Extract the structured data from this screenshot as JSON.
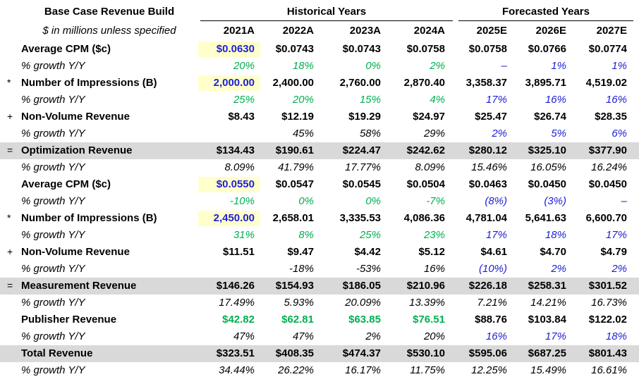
{
  "header": {
    "title": "Base Case Revenue Build",
    "subtitle": "$ in millions unless specified",
    "historical_label": "Historical Years",
    "forecast_label": "Forecasted Years",
    "years": [
      "2021A",
      "2022A",
      "2023A",
      "2024A",
      "2025E",
      "2026E",
      "2027E"
    ]
  },
  "colors": {
    "green": "#00b050",
    "blue": "#1f1fd6",
    "highlight": "#ffffcc",
    "band": "#d9d9d9"
  },
  "rows": [
    {
      "op": "",
      "label": "Average CPM ($c)",
      "style": "bold",
      "band": false,
      "values": [
        "$0.0630",
        "$0.0743",
        "$0.0743",
        "$0.0758",
        "$0.0758",
        "$0.0766",
        "$0.0774"
      ],
      "colors": [
        "blue",
        "black",
        "black",
        "black",
        "black",
        "black",
        "black"
      ],
      "highlight_first": true
    },
    {
      "op": "",
      "label": "% growth Y/Y",
      "style": "italic",
      "band": false,
      "values": [
        "20%",
        "18%",
        "0%",
        "2%",
        "–",
        "1%",
        "1%"
      ],
      "colors": [
        "green",
        "green",
        "green",
        "green",
        "blue",
        "blue",
        "blue"
      ],
      "highlight_first": false
    },
    {
      "op": "*",
      "label": "Number of Impressions (B)",
      "style": "bold",
      "band": false,
      "values": [
        "2,000.00",
        "2,400.00",
        "2,760.00",
        "2,870.40",
        "3,358.37",
        "3,895.71",
        "4,519.02"
      ],
      "colors": [
        "blue",
        "black",
        "black",
        "black",
        "black",
        "black",
        "black"
      ],
      "highlight_first": true
    },
    {
      "op": "",
      "label": "% growth Y/Y",
      "style": "italic",
      "band": false,
      "values": [
        "25%",
        "20%",
        "15%",
        "4%",
        "17%",
        "16%",
        "16%"
      ],
      "colors": [
        "green",
        "green",
        "green",
        "green",
        "blue",
        "blue",
        "blue"
      ],
      "highlight_first": false
    },
    {
      "op": "+",
      "label": "Non-Volume Revenue",
      "style": "bold",
      "band": false,
      "values": [
        "$8.43",
        "$12.19",
        "$19.29",
        "$24.97",
        "$25.47",
        "$26.74",
        "$28.35"
      ],
      "colors": [
        "black",
        "black",
        "black",
        "black",
        "black",
        "black",
        "black"
      ],
      "highlight_first": false
    },
    {
      "op": "",
      "label": "% growth Y/Y",
      "style": "italic",
      "band": false,
      "values": [
        "",
        "45%",
        "58%",
        "29%",
        "2%",
        "5%",
        "6%"
      ],
      "colors": [
        "black",
        "black",
        "black",
        "black",
        "blue",
        "blue",
        "blue"
      ],
      "highlight_first": false
    },
    {
      "op": "=",
      "label": "Optimization Revenue",
      "style": "bold",
      "band": true,
      "values": [
        "$134.43",
        "$190.61",
        "$224.47",
        "$242.62",
        "$280.12",
        "$325.10",
        "$377.90"
      ],
      "colors": [
        "black",
        "black",
        "black",
        "black",
        "black",
        "black",
        "black"
      ],
      "highlight_first": false
    },
    {
      "op": "",
      "label": "% growth Y/Y",
      "style": "italic",
      "band": false,
      "values": [
        "8.09%",
        "41.79%",
        "17.77%",
        "8.09%",
        "15.46%",
        "16.05%",
        "16.24%"
      ],
      "colors": [
        "black",
        "black",
        "black",
        "black",
        "black",
        "black",
        "black"
      ],
      "highlight_first": false
    },
    {
      "op": "",
      "label": "Average CPM ($c)",
      "style": "bold",
      "band": false,
      "values": [
        "$0.0550",
        "$0.0547",
        "$0.0545",
        "$0.0504",
        "$0.0463",
        "$0.0450",
        "$0.0450"
      ],
      "colors": [
        "blue",
        "black",
        "black",
        "black",
        "black",
        "black",
        "black"
      ],
      "highlight_first": true
    },
    {
      "op": "",
      "label": "% growth Y/Y",
      "style": "italic",
      "band": false,
      "values": [
        "-10%",
        "0%",
        "0%",
        "-7%",
        "(8%)",
        "(3%)",
        "–"
      ],
      "colors": [
        "green",
        "green",
        "green",
        "green",
        "blue",
        "blue",
        "blue"
      ],
      "highlight_first": false
    },
    {
      "op": "*",
      "label": "Number of Impressions (B)",
      "style": "bold",
      "band": false,
      "values": [
        "2,450.00",
        "2,658.01",
        "3,335.53",
        "4,086.36",
        "4,781.04",
        "5,641.63",
        "6,600.70"
      ],
      "colors": [
        "blue",
        "black",
        "black",
        "black",
        "black",
        "black",
        "black"
      ],
      "highlight_first": true
    },
    {
      "op": "",
      "label": "% growth Y/Y",
      "style": "italic",
      "band": false,
      "values": [
        "31%",
        "8%",
        "25%",
        "23%",
        "17%",
        "18%",
        "17%"
      ],
      "colors": [
        "green",
        "green",
        "green",
        "green",
        "blue",
        "blue",
        "blue"
      ],
      "highlight_first": false
    },
    {
      "op": "+",
      "label": "Non-Volume Revenue",
      "style": "bold",
      "band": false,
      "values": [
        "$11.51",
        "$9.47",
        "$4.42",
        "$5.12",
        "$4.61",
        "$4.70",
        "$4.79"
      ],
      "colors": [
        "black",
        "black",
        "black",
        "black",
        "black",
        "black",
        "black"
      ],
      "highlight_first": false
    },
    {
      "op": "",
      "label": "% growth Y/Y",
      "style": "italic",
      "band": false,
      "values": [
        "",
        "-18%",
        "-53%",
        "16%",
        "(10%)",
        "2%",
        "2%"
      ],
      "colors": [
        "black",
        "black",
        "black",
        "black",
        "blue",
        "blue",
        "blue"
      ],
      "highlight_first": false
    },
    {
      "op": "=",
      "label": "Measurement Revenue",
      "style": "bold",
      "band": true,
      "values": [
        "$146.26",
        "$154.93",
        "$186.05",
        "$210.96",
        "$226.18",
        "$258.31",
        "$301.52"
      ],
      "colors": [
        "black",
        "black",
        "black",
        "black",
        "black",
        "black",
        "black"
      ],
      "highlight_first": false
    },
    {
      "op": "",
      "label": "% growth Y/Y",
      "style": "italic",
      "band": false,
      "values": [
        "17.49%",
        "5.93%",
        "20.09%",
        "13.39%",
        "7.21%",
        "14.21%",
        "16.73%"
      ],
      "colors": [
        "black",
        "black",
        "black",
        "black",
        "black",
        "black",
        "black"
      ],
      "highlight_first": false
    },
    {
      "op": "",
      "label": "Publisher Revenue",
      "style": "bold",
      "band": false,
      "values": [
        "$42.82",
        "$62.81",
        "$63.85",
        "$76.51",
        "$88.76",
        "$103.84",
        "$122.02"
      ],
      "colors": [
        "green",
        "green",
        "green",
        "green",
        "black",
        "black",
        "black"
      ],
      "highlight_first": false
    },
    {
      "op": "",
      "label": "% growth Y/Y",
      "style": "italic",
      "band": false,
      "values": [
        "47%",
        "47%",
        "2%",
        "20%",
        "16%",
        "17%",
        "18%"
      ],
      "colors": [
        "black",
        "black",
        "black",
        "black",
        "blue",
        "blue",
        "blue"
      ],
      "highlight_first": false
    },
    {
      "op": "",
      "label": "Total Revenue",
      "style": "bold",
      "band": true,
      "values": [
        "$323.51",
        "$408.35",
        "$474.37",
        "$530.10",
        "$595.06",
        "$687.25",
        "$801.43"
      ],
      "colors": [
        "black",
        "black",
        "black",
        "black",
        "black",
        "black",
        "black"
      ],
      "highlight_first": false
    },
    {
      "op": "",
      "label": "% growth Y/Y",
      "style": "italic",
      "band": false,
      "values": [
        "34.44%",
        "26.22%",
        "16.17%",
        "11.75%",
        "12.25%",
        "15.49%",
        "16.61%"
      ],
      "colors": [
        "black",
        "black",
        "black",
        "black",
        "black",
        "black",
        "black"
      ],
      "highlight_first": false
    }
  ]
}
